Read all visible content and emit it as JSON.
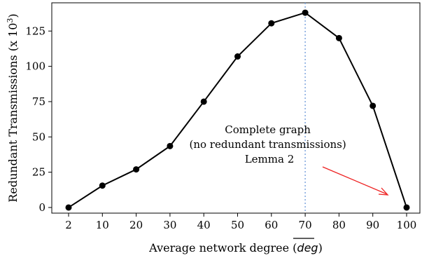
{
  "chart_data": {
    "type": "line",
    "categories": [
      "2",
      "10",
      "20",
      "30",
      "40",
      "50",
      "60",
      "70",
      "80",
      "90",
      "100"
    ],
    "series": [
      {
        "values": [
          0,
          15.5,
          27,
          43.5,
          75,
          107,
          130.5,
          138,
          120,
          72,
          0
        ]
      }
    ],
    "xlabel_prefix": "Average network degree (",
    "xlabel_var": "deg",
    "xlabel_suffix": ")",
    "ylabel_prefix": "Redundant Transmissions (x 10",
    "ylabel_exp": "3",
    "ylabel_suffix": ")",
    "yticks": [
      0,
      25,
      50,
      75,
      100,
      125
    ],
    "yticklabels": [
      "0",
      "25",
      "50",
      "75",
      "100",
      "125"
    ],
    "ylim": [
      -4,
      145
    ],
    "grid": false,
    "vline_category": "70",
    "annotation_lines": [
      "Complete graph",
      "(no redundant transmissions)",
      "Lemma 2"
    ],
    "colors": {
      "line": "#000000",
      "marker": "#000000",
      "vline": "#7fa6de",
      "arrow": "#ee2222"
    }
  }
}
